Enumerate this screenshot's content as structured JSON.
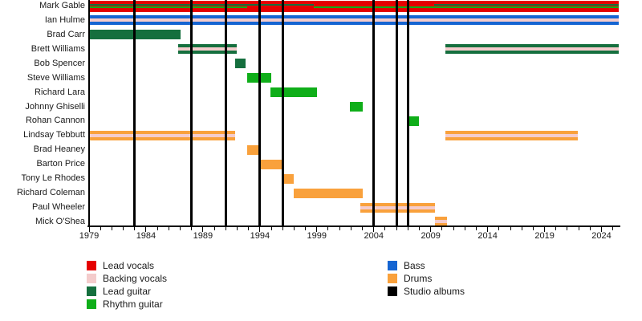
{
  "chart_data": {
    "type": "timeline",
    "description": "Band members timeline (Gantt-style) with studio album markers",
    "x_axis": {
      "start_year": 1979,
      "end_year": 2025,
      "tick_interval": 1,
      "label_years": [
        "1979",
        "1984",
        "1989",
        "1994",
        "1999",
        "2004",
        "2009",
        "2014",
        "2019",
        "2024"
      ]
    },
    "colors": {
      "lead_vocals": "#E50000",
      "backing_vocals": "#F4CCCC",
      "lead_guitar": "#156F3E",
      "rhythm_guitar": "#0FAE19",
      "bass": "#1565D2",
      "drums": "#F9A13C",
      "albums": "#000000"
    },
    "studio_album_years": [
      1983,
      1988,
      1991,
      1994,
      1996,
      2004,
      2006,
      2007
    ],
    "members": [
      {
        "name": "Mark Gable",
        "barHeight": 14,
        "segments": [
          {
            "role": "lead_vocals",
            "from": 1979,
            "to": 2025.5,
            "band": [
              0,
              1
            ]
          },
          {
            "role": "lead_guitar",
            "from": 1979,
            "to": 1998.7,
            "band": [
              0.286,
              0.5
            ]
          },
          {
            "role": "lead_guitar",
            "from": 2009.3,
            "to": 2025.5,
            "band": [
              0.286,
              0.5
            ]
          },
          {
            "role": "rhythm_guitar",
            "from": 1979,
            "to": 1992.9,
            "band": [
              0.5,
              0.714
            ]
          },
          {
            "role": "rhythm_guitar",
            "from": 1998.7,
            "to": 2025.5,
            "band": [
              0.5,
              0.714
            ]
          }
        ]
      },
      {
        "name": "Ian Hulme",
        "segments": [
          {
            "role": "bass",
            "from": 1979,
            "to": 2025.5,
            "band": [
              0,
              1
            ]
          },
          {
            "role": "backing_vocals",
            "from": 1979,
            "to": 2025.5,
            "band": [
              0.333,
              0.667
            ]
          }
        ]
      },
      {
        "name": "Brad Carr",
        "segments": [
          {
            "role": "lead_guitar",
            "from": 1979,
            "to": 1987,
            "band": [
              0,
              1
            ]
          }
        ]
      },
      {
        "name": "Brett Williams",
        "segments": [
          {
            "role": "lead_guitar",
            "from": 1986.85,
            "to": 1992,
            "band": [
              0,
              1
            ]
          },
          {
            "role": "backing_vocals",
            "from": 1986.85,
            "to": 1992,
            "band": [
              0.333,
              0.667
            ]
          },
          {
            "role": "lead_guitar",
            "from": 2010.3,
            "to": 2025.5,
            "band": [
              0,
              1
            ]
          },
          {
            "role": "backing_vocals",
            "from": 2010.3,
            "to": 2025.5,
            "band": [
              0.333,
              0.667
            ]
          }
        ]
      },
      {
        "name": "Bob Spencer",
        "segments": [
          {
            "role": "lead_guitar",
            "from": 1991.8,
            "to": 1992.75,
            "band": [
              0,
              1
            ]
          }
        ]
      },
      {
        "name": "Steve Williams",
        "segments": [
          {
            "role": "rhythm_guitar",
            "from": 1992.9,
            "to": 1995,
            "band": [
              0,
              1
            ]
          }
        ]
      },
      {
        "name": "Richard Lara",
        "segments": [
          {
            "role": "rhythm_guitar",
            "from": 1994.9,
            "to": 1999,
            "band": [
              0,
              1
            ]
          }
        ]
      },
      {
        "name": "Johnny Ghiselli",
        "segments": [
          {
            "role": "rhythm_guitar",
            "from": 2001.9,
            "to": 2003,
            "band": [
              0,
              1
            ]
          }
        ]
      },
      {
        "name": "Rohan Cannon",
        "segments": [
          {
            "role": "rhythm_guitar",
            "from": 2006.9,
            "to": 2008,
            "band": [
              0,
              1
            ]
          }
        ]
      },
      {
        "name": "Lindsay Tebbutt",
        "segments": [
          {
            "role": "drums",
            "from": 1979,
            "to": 1991.8,
            "band": [
              0,
              1
            ]
          },
          {
            "role": "backing_vocals",
            "from": 1979,
            "to": 1991.8,
            "band": [
              0.333,
              0.667
            ]
          },
          {
            "role": "drums",
            "from": 2010.3,
            "to": 2021.9,
            "band": [
              0,
              1
            ]
          },
          {
            "role": "backing_vocals",
            "from": 2010.3,
            "to": 2021.9,
            "band": [
              0.333,
              0.667
            ]
          }
        ]
      },
      {
        "name": "Brad Heaney",
        "segments": [
          {
            "role": "drums",
            "from": 1992.9,
            "to": 1993.9,
            "band": [
              0,
              1
            ]
          }
        ]
      },
      {
        "name": "Barton Price",
        "segments": [
          {
            "role": "drums",
            "from": 1993.95,
            "to": 1995.95,
            "band": [
              0,
              1
            ]
          }
        ]
      },
      {
        "name": "Tony Le Rhodes",
        "segments": [
          {
            "role": "drums",
            "from": 1995.95,
            "to": 1996.95,
            "band": [
              0,
              1
            ]
          }
        ]
      },
      {
        "name": "Richard Coleman",
        "segments": [
          {
            "role": "drums",
            "from": 1996.95,
            "to": 2003,
            "band": [
              0,
              1
            ]
          }
        ]
      },
      {
        "name": "Paul Wheeler",
        "segments": [
          {
            "role": "drums",
            "from": 2002.85,
            "to": 2009.4,
            "band": [
              0,
              1
            ]
          },
          {
            "role": "backing_vocals",
            "from": 2002.85,
            "to": 2009.4,
            "band": [
              0.333,
              0.667
            ]
          }
        ]
      },
      {
        "name": "Mick O'Shea",
        "segments": [
          {
            "role": "drums",
            "from": 2009.4,
            "to": 2010.45,
            "band": [
              0,
              1
            ]
          },
          {
            "role": "backing_vocals",
            "from": 2009.4,
            "to": 2010.45,
            "band": [
              0.333,
              0.667
            ]
          }
        ]
      }
    ],
    "legend": {
      "columns": [
        {
          "items": [
            {
              "label": "Lead vocals",
              "role": "lead_vocals"
            },
            {
              "label": "Backing vocals",
              "role": "backing_vocals"
            },
            {
              "label": "Lead guitar",
              "role": "lead_guitar"
            },
            {
              "label": "Rhythm guitar",
              "role": "rhythm_guitar"
            }
          ]
        },
        {
          "items": [
            {
              "label": "Bass",
              "role": "bass"
            },
            {
              "label": "Drums",
              "role": "drums"
            },
            {
              "label": "Studio albums",
              "role": "albums"
            }
          ]
        }
      ]
    }
  }
}
